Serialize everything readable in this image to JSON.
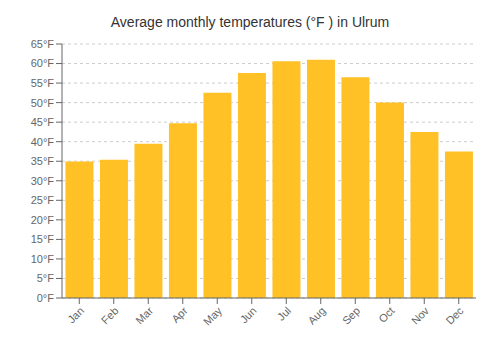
{
  "chart_data": {
    "type": "bar",
    "title": "Average monthly temperatures (°F ) in Ulrum",
    "categories": [
      "Jan",
      "Feb",
      "Mar",
      "Apr",
      "May",
      "Jun",
      "Jul",
      "Aug",
      "Sep",
      "Oct",
      "Nov",
      "Dec"
    ],
    "values": [
      34.9,
      35.4,
      39.5,
      44.7,
      52.5,
      57.6,
      60.6,
      61.0,
      56.5,
      50.0,
      42.5,
      37.5
    ],
    "color": "#FFC125",
    "ylim": [
      0,
      65
    ],
    "yticks": [
      {
        "value": 0,
        "label": "0°F"
      },
      {
        "value": 5,
        "label": "5°F"
      },
      {
        "value": 10,
        "label": "10°F"
      },
      {
        "value": 15,
        "label": "15°F"
      },
      {
        "value": 20,
        "label": "20°F"
      },
      {
        "value": 25,
        "label": "25°F"
      },
      {
        "value": 30,
        "label": "30°F"
      },
      {
        "value": 35,
        "label": "35°F"
      },
      {
        "value": 40,
        "label": "40°F"
      },
      {
        "value": 45,
        "label": "45°F"
      },
      {
        "value": 50,
        "label": "50°F"
      },
      {
        "value": 55,
        "label": "55°F"
      },
      {
        "value": 60,
        "label": "60°F"
      },
      {
        "value": 65,
        "label": "65°F"
      }
    ],
    "grid": true
  }
}
